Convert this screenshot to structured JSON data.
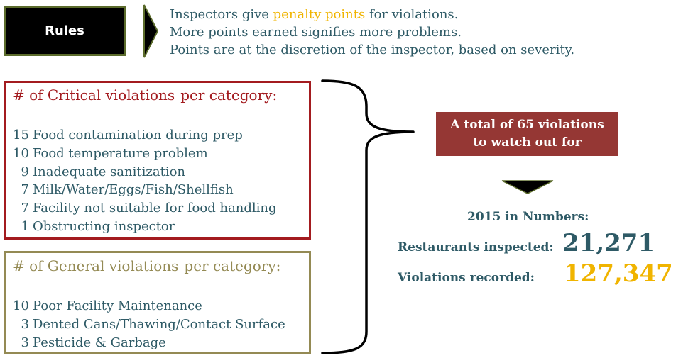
{
  "rules": {
    "label": "Rules",
    "lines": [
      {
        "before": "Inspectors give ",
        "highlight": "penalty points",
        "after": " for violations."
      },
      {
        "text": "More points earned signifies more problems."
      },
      {
        "text": "Points are at the discretion of the inspector, based on severity."
      }
    ]
  },
  "critical": {
    "title": [
      "#",
      "of Critical",
      "violations",
      "per category:"
    ],
    "items": [
      {
        "count": "15",
        "label": "Food contamination during prep"
      },
      {
        "count": "10",
        "label": "Food temperature problem"
      },
      {
        "count": "9",
        "label": "Inadequate sanitization"
      },
      {
        "count": "7",
        "label": "Milk/Water/Eggs/Fish/Shellfish"
      },
      {
        "count": "7",
        "label": "Facility not suitable for food handling"
      },
      {
        "count": "1",
        "label": "Obstructing inspector"
      }
    ]
  },
  "general": {
    "title": [
      "#",
      "of General",
      "violations",
      "per category:"
    ],
    "items": [
      {
        "count": "10",
        "label": "Poor Facility Maintenance"
      },
      {
        "count": "3",
        "label": "Dented Cans/Thawing/Contact Surface"
      },
      {
        "count": "3",
        "label": "Pesticide & Garbage"
      }
    ]
  },
  "total": {
    "line1": "A total of 65 violations",
    "line2": "to watch out for"
  },
  "stats": {
    "title": "2015 in Numbers:",
    "restaurants_label": "Restaurants inspected:",
    "restaurants_value": "21,271",
    "violations_label": "Violations recorded:",
    "violations_value": "127,347"
  },
  "colors": {
    "teal_text": "#2e5a66",
    "highlight": "#f0b400",
    "critical": "#a31b1f",
    "general": "#948a54",
    "total_box": "#953734"
  }
}
